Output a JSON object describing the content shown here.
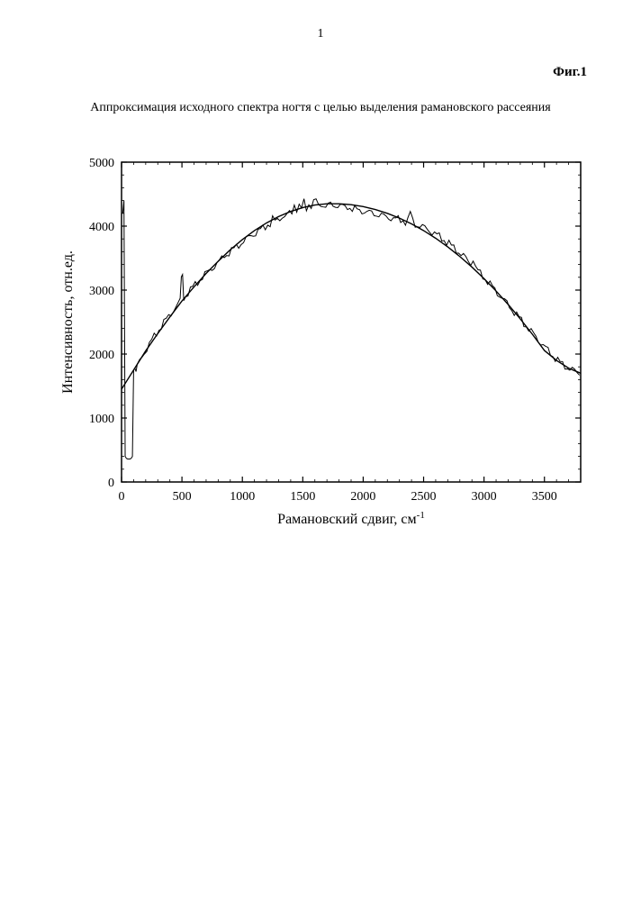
{
  "page_number": "1",
  "figure_label": "Фиг.1",
  "caption": "Аппроксимация исходного спектра ногтя с целью выделения рамановского рассеяния",
  "chart": {
    "type": "line",
    "xlabel": "Рамановский сдвиг, см",
    "xlabel_sup": "-1",
    "ylabel": "Интенсивность, отн.ед.",
    "xlim": [
      0,
      3800
    ],
    "ylim": [
      0,
      5000
    ],
    "xticks": [
      0,
      500,
      1000,
      1500,
      2000,
      2500,
      3000,
      3500
    ],
    "yticks": [
      0,
      1000,
      2000,
      3000,
      4000,
      5000
    ],
    "minor_ticks": true,
    "background_color": "#ffffff",
    "axis_color": "#000000",
    "line_color": "#000000",
    "line_width": 1.4,
    "noisy_line_width": 1.0,
    "tick_length": 6,
    "minor_tick_length": 3,
    "smooth_series": [
      [
        0,
        1450
      ],
      [
        100,
        1750
      ],
      [
        200,
        2050
      ],
      [
        300,
        2320
      ],
      [
        400,
        2580
      ],
      [
        500,
        2830
      ],
      [
        600,
        3050
      ],
      [
        700,
        3260
      ],
      [
        800,
        3450
      ],
      [
        900,
        3630
      ],
      [
        1000,
        3790
      ],
      [
        1100,
        3930
      ],
      [
        1200,
        4050
      ],
      [
        1300,
        4150
      ],
      [
        1400,
        4230
      ],
      [
        1500,
        4290
      ],
      [
        1600,
        4330
      ],
      [
        1700,
        4350
      ],
      [
        1800,
        4350
      ],
      [
        1900,
        4335
      ],
      [
        2000,
        4305
      ],
      [
        2100,
        4260
      ],
      [
        2200,
        4200
      ],
      [
        2300,
        4125
      ],
      [
        2400,
        4035
      ],
      [
        2500,
        3930
      ],
      [
        2600,
        3810
      ],
      [
        2700,
        3675
      ],
      [
        2800,
        3525
      ],
      [
        2900,
        3360
      ],
      [
        3000,
        3180
      ],
      [
        3100,
        2985
      ],
      [
        3200,
        2775
      ],
      [
        3300,
        2550
      ],
      [
        3400,
        2310
      ],
      [
        3500,
        2055
      ],
      [
        3600,
        1900
      ],
      [
        3700,
        1780
      ],
      [
        3800,
        1700
      ]
    ],
    "noisy_series": [
      [
        10,
        4200
      ],
      [
        20,
        4400
      ],
      [
        30,
        400
      ],
      [
        40,
        370
      ],
      [
        50,
        360
      ],
      [
        60,
        360
      ],
      [
        70,
        360
      ],
      [
        80,
        370
      ],
      [
        90,
        400
      ],
      [
        100,
        1750
      ],
      [
        110,
        1780
      ],
      [
        120,
        1770
      ],
      [
        130,
        1800
      ],
      [
        150,
        1880
      ],
      [
        170,
        1960
      ],
      [
        190,
        2030
      ],
      [
        210,
        2090
      ],
      [
        230,
        2150
      ],
      [
        250,
        2215
      ],
      [
        270,
        2275
      ],
      [
        290,
        2330
      ],
      [
        310,
        2385
      ],
      [
        330,
        2435
      ],
      [
        350,
        2490
      ],
      [
        370,
        2540
      ],
      [
        390,
        2590
      ],
      [
        410,
        2640
      ],
      [
        430,
        2690
      ],
      [
        450,
        2735
      ],
      [
        470,
        2780
      ],
      [
        485,
        2830
      ],
      [
        495,
        3250
      ],
      [
        505,
        3230
      ],
      [
        515,
        2870
      ],
      [
        530,
        2915
      ],
      [
        550,
        2960
      ],
      [
        570,
        3005
      ],
      [
        590,
        3045
      ],
      [
        610,
        3085
      ],
      [
        630,
        3125
      ],
      [
        650,
        3165
      ],
      [
        670,
        3200
      ],
      [
        690,
        3240
      ],
      [
        710,
        3275
      ],
      [
        730,
        3310
      ],
      [
        750,
        3345
      ],
      [
        770,
        3380
      ],
      [
        790,
        3415
      ],
      [
        810,
        3450
      ],
      [
        830,
        3485
      ],
      [
        850,
        3545
      ],
      [
        870,
        3555
      ],
      [
        890,
        3585
      ],
      [
        910,
        3615
      ],
      [
        930,
        3645
      ],
      [
        950,
        3675
      ],
      [
        970,
        3705
      ],
      [
        990,
        3735
      ],
      [
        1010,
        3760
      ],
      [
        1030,
        3790
      ],
      [
        1050,
        3815
      ],
      [
        1070,
        3860
      ],
      [
        1090,
        3870
      ],
      [
        1110,
        3895
      ],
      [
        1130,
        3920
      ],
      [
        1150,
        3945
      ],
      [
        1170,
        3965
      ],
      [
        1190,
        3990
      ],
      [
        1210,
        4030
      ],
      [
        1230,
        4035
      ],
      [
        1250,
        4110
      ],
      [
        1270,
        4075
      ],
      [
        1290,
        4095
      ],
      [
        1310,
        4130
      ],
      [
        1330,
        4155
      ],
      [
        1350,
        4150
      ],
      [
        1370,
        4165
      ],
      [
        1390,
        4200
      ],
      [
        1410,
        4215
      ],
      [
        1430,
        4350
      ],
      [
        1450,
        4270
      ],
      [
        1470,
        4300
      ],
      [
        1490,
        4270
      ],
      [
        1510,
        4380
      ],
      [
        1530,
        4290
      ],
      [
        1550,
        4350
      ],
      [
        1570,
        4310
      ],
      [
        1590,
        4365
      ],
      [
        1610,
        4400
      ],
      [
        1630,
        4330
      ],
      [
        1650,
        4345
      ],
      [
        1670,
        4340
      ],
      [
        1690,
        4280
      ],
      [
        1710,
        4335
      ],
      [
        1730,
        4325
      ],
      [
        1750,
        4350
      ],
      [
        1770,
        4310
      ],
      [
        1790,
        4340
      ],
      [
        1810,
        4290
      ],
      [
        1830,
        4325
      ],
      [
        1850,
        4280
      ],
      [
        1870,
        4310
      ],
      [
        1890,
        4300
      ],
      [
        1910,
        4250
      ],
      [
        1930,
        4280
      ],
      [
        1950,
        4235
      ],
      [
        1970,
        4265
      ],
      [
        1990,
        4220
      ],
      [
        2010,
        4250
      ],
      [
        2030,
        4200
      ],
      [
        2050,
        4230
      ],
      [
        2070,
        4185
      ],
      [
        2090,
        4210
      ],
      [
        2110,
        4170
      ],
      [
        2130,
        4190
      ],
      [
        2150,
        4150
      ],
      [
        2170,
        4170
      ],
      [
        2190,
        4130
      ],
      [
        2210,
        4155
      ],
      [
        2230,
        4115
      ],
      [
        2250,
        4135
      ],
      [
        2270,
        4095
      ],
      [
        2290,
        4120
      ],
      [
        2310,
        4080
      ],
      [
        2330,
        4105
      ],
      [
        2350,
        4065
      ],
      [
        2370,
        4090
      ],
      [
        2390,
        4215
      ],
      [
        2410,
        4075
      ],
      [
        2430,
        4035
      ],
      [
        2450,
        4005
      ],
      [
        2470,
        4015
      ],
      [
        2490,
        3975
      ],
      [
        2510,
        3980
      ],
      [
        2530,
        3940
      ],
      [
        2550,
        3940
      ],
      [
        2570,
        3900
      ],
      [
        2590,
        3895
      ],
      [
        2610,
        3855
      ],
      [
        2630,
        3845
      ],
      [
        2650,
        3805
      ],
      [
        2670,
        3790
      ],
      [
        2690,
        3750
      ],
      [
        2710,
        3730
      ],
      [
        2730,
        3690
      ],
      [
        2750,
        3665
      ],
      [
        2770,
        3630
      ],
      [
        2790,
        3600
      ],
      [
        2810,
        3560
      ],
      [
        2830,
        3530
      ],
      [
        2850,
        3490
      ],
      [
        2870,
        3455
      ],
      [
        2890,
        3415
      ],
      [
        2910,
        3500
      ],
      [
        2930,
        3345
      ],
      [
        2950,
        3300
      ],
      [
        2970,
        3260
      ],
      [
        2990,
        3220
      ],
      [
        3010,
        3175
      ],
      [
        3030,
        3135
      ],
      [
        3050,
        3090
      ],
      [
        3070,
        3050
      ],
      [
        3090,
        3005
      ],
      [
        3110,
        2960
      ],
      [
        3130,
        2920
      ],
      [
        3150,
        2875
      ],
      [
        3170,
        2830
      ],
      [
        3190,
        2790
      ],
      [
        3210,
        2745
      ],
      [
        3230,
        2700
      ],
      [
        3250,
        2655
      ],
      [
        3270,
        2615
      ],
      [
        3290,
        2570
      ],
      [
        3310,
        2525
      ],
      [
        3330,
        2480
      ],
      [
        3350,
        2440
      ],
      [
        3370,
        2395
      ],
      [
        3390,
        2350
      ],
      [
        3410,
        2310
      ],
      [
        3430,
        2265
      ],
      [
        3450,
        2220
      ],
      [
        3470,
        2180
      ],
      [
        3490,
        2135
      ],
      [
        3510,
        2095
      ],
      [
        3530,
        2055
      ],
      [
        3550,
        2015
      ],
      [
        3570,
        1975
      ],
      [
        3590,
        1935
      ],
      [
        3610,
        1900
      ],
      [
        3630,
        1870
      ],
      [
        3650,
        1840
      ],
      [
        3670,
        1815
      ],
      [
        3690,
        1790
      ],
      [
        3710,
        1770
      ],
      [
        3730,
        1750
      ],
      [
        3750,
        1730
      ],
      [
        3770,
        1715
      ],
      [
        3790,
        1700
      ]
    ]
  }
}
